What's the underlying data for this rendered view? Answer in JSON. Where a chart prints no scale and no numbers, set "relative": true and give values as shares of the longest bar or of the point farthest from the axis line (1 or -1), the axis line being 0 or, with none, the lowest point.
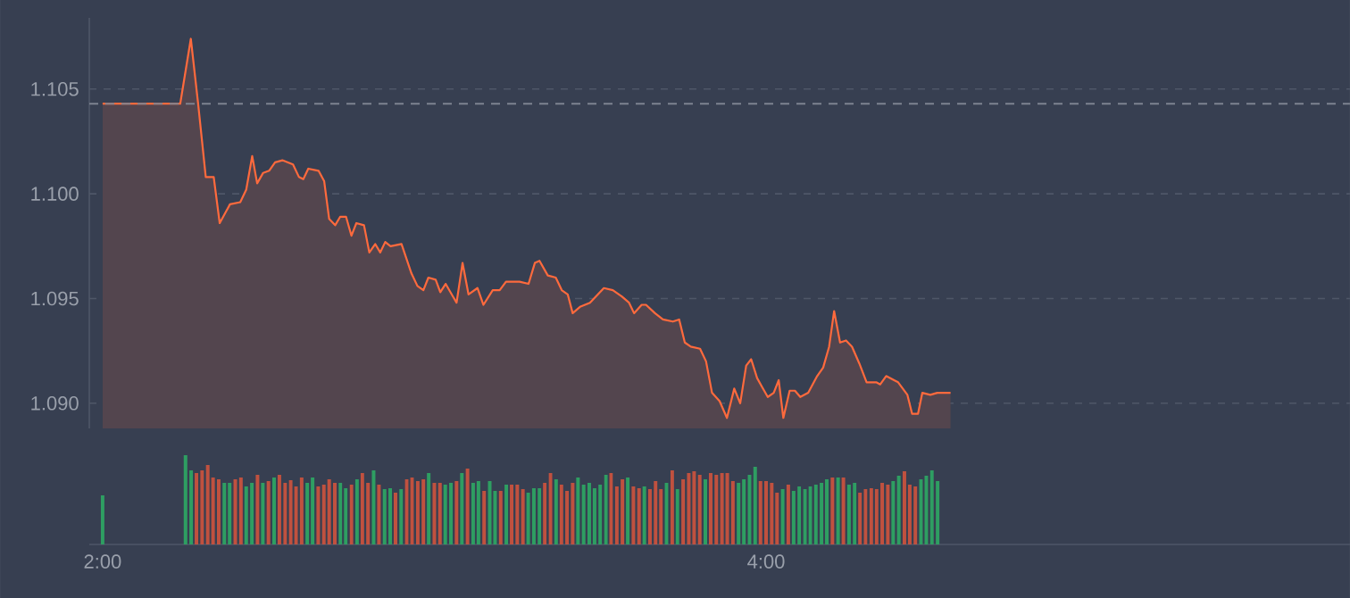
{
  "chart_data": [
    {
      "type": "area",
      "xlim": [
        1.96,
        5.76
      ],
      "ylim": [
        1.0888,
        1.1084
      ],
      "yticks": [
        {
          "value": 1.09,
          "label": "1.090"
        },
        {
          "value": 1.095,
          "label": "1.095"
        },
        {
          "value": 1.1,
          "label": "1.100"
        },
        {
          "value": 1.105,
          "label": "1.105"
        }
      ],
      "grid": "y",
      "tick_labels": "y",
      "ref_lines": [
        {
          "axis": "y",
          "value": 1.1043,
          "color": "#7d8390",
          "line_style": "dashed"
        }
      ],
      "x": [
        2.0,
        2.234,
        2.266,
        2.288,
        2.311,
        2.335,
        2.353,
        2.384,
        2.415,
        2.433,
        2.451,
        2.466,
        2.484,
        2.502,
        2.52,
        2.542,
        2.574,
        2.592,
        2.605,
        2.62,
        2.651,
        2.668,
        2.683,
        2.701,
        2.716,
        2.734,
        2.75,
        2.765,
        2.788,
        2.804,
        2.822,
        2.837,
        2.852,
        2.868,
        2.901,
        2.931,
        2.949,
        2.967,
        2.982,
        3.004,
        3.018,
        3.034,
        3.067,
        3.085,
        3.103,
        3.13,
        3.148,
        3.176,
        3.197,
        3.216,
        3.257,
        3.284,
        3.303,
        3.317,
        3.342,
        3.366,
        3.384,
        3.402,
        3.417,
        3.439,
        3.469,
        3.511,
        3.538,
        3.565,
        3.587,
        3.602,
        3.625,
        3.638,
        3.665,
        3.689,
        3.719,
        3.738,
        3.755,
        3.773,
        3.801,
        3.819,
        3.837,
        3.86,
        3.882,
        3.904,
        3.922,
        3.94,
        3.955,
        3.973,
        3.987,
        4.005,
        4.023,
        4.038,
        4.052,
        4.071,
        4.087,
        4.103,
        4.127,
        4.154,
        4.172,
        4.19,
        4.205,
        4.223,
        4.241,
        4.259,
        4.281,
        4.303,
        4.332,
        4.344,
        4.362,
        4.386,
        4.398,
        4.426,
        4.44,
        4.458,
        4.471,
        4.495,
        4.516,
        4.556
      ],
      "series": [
        {
          "color": "#ff6a3d",
          "values": [
            1.1043,
            1.1043,
            1.1074,
            1.1043,
            1.1008,
            1.1008,
            1.0986,
            1.0995,
            1.0996,
            1.1002,
            1.1018,
            1.1005,
            1.101,
            1.1011,
            1.1015,
            1.1016,
            1.1014,
            1.1008,
            1.1007,
            1.1012,
            1.1011,
            1.1006,
            1.0988,
            1.0985,
            1.0989,
            1.0989,
            1.098,
            1.0986,
            1.0985,
            1.0972,
            1.0976,
            1.0972,
            1.0977,
            1.0975,
            1.0976,
            1.0962,
            1.0956,
            1.0954,
            1.096,
            1.0959,
            1.0953,
            1.0957,
            1.0948,
            1.0967,
            1.0952,
            1.0955,
            1.0947,
            1.0954,
            1.0954,
            1.0958,
            1.0958,
            1.0957,
            1.0967,
            1.0968,
            1.0961,
            1.096,
            1.0954,
            1.0952,
            1.0943,
            1.0946,
            1.0948,
            1.0955,
            1.0954,
            1.0951,
            1.0948,
            1.0943,
            1.0947,
            1.0947,
            1.0943,
            1.094,
            1.0939,
            1.094,
            1.0929,
            1.0927,
            1.0926,
            1.092,
            1.0905,
            1.0901,
            1.0893,
            1.0907,
            1.09,
            1.0918,
            1.0921,
            1.0912,
            1.0908,
            1.0903,
            1.0905,
            1.0911,
            1.0893,
            1.0906,
            1.0906,
            1.0903,
            1.0905,
            1.0913,
            1.0917,
            1.0927,
            1.0944,
            1.0929,
            1.093,
            1.0927,
            1.0919,
            1.091,
            1.091,
            1.0909,
            1.0913,
            1.0911,
            1.091,
            1.0904,
            1.0895,
            1.0895,
            1.0905,
            1.0904,
            1.0905,
            1.0905
          ]
        }
      ]
    },
    {
      "type": "bar",
      "relative": true,
      "xlim": [
        1.96,
        5.76
      ],
      "tick_labels": "x",
      "xticks": [
        {
          "value": 2,
          "label": "2:00"
        },
        {
          "value": 4,
          "label": "4:00"
        }
      ],
      "x": [
        2.0,
        2.25,
        2.267,
        2.283,
        2.3,
        2.317,
        2.333,
        2.35,
        2.367,
        2.383,
        2.4,
        2.417,
        2.433,
        2.45,
        2.467,
        2.483,
        2.5,
        2.517,
        2.533,
        2.55,
        2.567,
        2.583,
        2.6,
        2.617,
        2.633,
        2.65,
        2.667,
        2.683,
        2.7,
        2.717,
        2.733,
        2.75,
        2.767,
        2.783,
        2.8,
        2.817,
        2.833,
        2.85,
        2.867,
        2.883,
        2.9,
        2.917,
        2.933,
        2.95,
        2.967,
        2.983,
        3.0,
        3.017,
        3.033,
        3.05,
        3.067,
        3.083,
        3.1,
        3.117,
        3.133,
        3.15,
        3.167,
        3.183,
        3.2,
        3.217,
        3.233,
        3.25,
        3.267,
        3.283,
        3.3,
        3.317,
        3.333,
        3.35,
        3.367,
        3.383,
        3.4,
        3.417,
        3.433,
        3.45,
        3.467,
        3.483,
        3.5,
        3.517,
        3.533,
        3.55,
        3.567,
        3.583,
        3.6,
        3.617,
        3.633,
        3.65,
        3.667,
        3.683,
        3.7,
        3.717,
        3.733,
        3.75,
        3.767,
        3.783,
        3.8,
        3.817,
        3.833,
        3.85,
        3.867,
        3.883,
        3.9,
        3.917,
        3.933,
        3.95,
        3.967,
        3.983,
        4.0,
        4.017,
        4.033,
        4.05,
        4.067,
        4.083,
        4.1,
        4.117,
        4.133,
        4.15,
        4.167,
        4.183,
        4.2,
        4.217,
        4.233,
        4.25,
        4.267,
        4.283,
        4.3,
        4.317,
        4.333,
        4.35,
        4.367,
        4.383,
        4.4,
        4.417,
        4.433,
        4.45,
        4.467,
        4.483,
        4.5,
        4.517
      ],
      "values": [
        0.55,
        1.0,
        0.83,
        0.8,
        0.83,
        0.89,
        0.75,
        0.73,
        0.69,
        0.69,
        0.73,
        0.75,
        0.65,
        0.69,
        0.78,
        0.69,
        0.71,
        0.75,
        0.78,
        0.69,
        0.72,
        0.65,
        0.75,
        0.69,
        0.75,
        0.65,
        0.67,
        0.73,
        0.69,
        0.69,
        0.63,
        0.67,
        0.73,
        0.8,
        0.69,
        0.83,
        0.67,
        0.62,
        0.63,
        0.58,
        0.62,
        0.73,
        0.75,
        0.71,
        0.73,
        0.8,
        0.69,
        0.69,
        0.67,
        0.69,
        0.71,
        0.8,
        0.85,
        0.69,
        0.71,
        0.6,
        0.71,
        0.6,
        0.6,
        0.67,
        0.67,
        0.67,
        0.62,
        0.58,
        0.63,
        0.63,
        0.69,
        0.8,
        0.73,
        0.67,
        0.6,
        0.69,
        0.75,
        0.67,
        0.69,
        0.63,
        0.67,
        0.78,
        0.8,
        0.65,
        0.73,
        0.75,
        0.65,
        0.63,
        0.65,
        0.62,
        0.71,
        0.62,
        0.69,
        0.83,
        0.62,
        0.73,
        0.8,
        0.82,
        0.78,
        0.73,
        0.8,
        0.78,
        0.8,
        0.8,
        0.71,
        0.69,
        0.73,
        0.78,
        0.87,
        0.71,
        0.71,
        0.69,
        0.58,
        0.62,
        0.67,
        0.6,
        0.65,
        0.62,
        0.65,
        0.67,
        0.69,
        0.73,
        0.75,
        0.75,
        0.75,
        0.67,
        0.69,
        0.58,
        0.62,
        0.63,
        0.62,
        0.69,
        0.67,
        0.71,
        0.77,
        0.82,
        0.67,
        0.65,
        0.73,
        0.77,
        0.83,
        0.71
      ],
      "colors": [
        "#2e9e62",
        "#2e9e62",
        "#2e9e62",
        "#c0513f",
        "#c0513f",
        "#c0513f",
        "#c0513f",
        "#c0513f",
        "#2e9e62",
        "#2e9e62",
        "#c0513f",
        "#c0513f",
        "#2e9e62",
        "#2e9e62",
        "#c0513f",
        "#2e9e62",
        "#c0513f",
        "#2e9e62",
        "#c0513f",
        "#c0513f",
        "#c0513f",
        "#c0513f",
        "#c0513f",
        "#2e9e62",
        "#2e9e62",
        "#c0513f",
        "#c0513f",
        "#c0513f",
        "#c0513f",
        "#2e9e62",
        "#2e9e62",
        "#c0513f",
        "#2e9e62",
        "#c0513f",
        "#c0513f",
        "#2e9e62",
        "#c0513f",
        "#2e9e62",
        "#2e9e62",
        "#c0513f",
        "#2e9e62",
        "#c0513f",
        "#c0513f",
        "#c0513f",
        "#c0513f",
        "#2e9e62",
        "#c0513f",
        "#c0513f",
        "#2e9e62",
        "#2e9e62",
        "#c0513f",
        "#2e9e62",
        "#c0513f",
        "#2e9e62",
        "#2e9e62",
        "#c0513f",
        "#2e9e62",
        "#2e9e62",
        "#c0513f",
        "#2e9e62",
        "#c0513f",
        "#c0513f",
        "#c0513f",
        "#2e9e62",
        "#2e9e62",
        "#2e9e62",
        "#c0513f",
        "#c0513f",
        "#2e9e62",
        "#c0513f",
        "#c0513f",
        "#c0513f",
        "#2e9e62",
        "#2e9e62",
        "#2e9e62",
        "#2e9e62",
        "#2e9e62",
        "#2e9e62",
        "#c0513f",
        "#c0513f",
        "#c0513f",
        "#2e9e62",
        "#c0513f",
        "#c0513f",
        "#2e9e62",
        "#c0513f",
        "#c0513f",
        "#c0513f",
        "#2e9e62",
        "#c0513f",
        "#2e9e62",
        "#c0513f",
        "#c0513f",
        "#c0513f",
        "#c0513f",
        "#2e9e62",
        "#c0513f",
        "#c0513f",
        "#c0513f",
        "#c0513f",
        "#c0513f",
        "#2e9e62",
        "#2e9e62",
        "#2e9e62",
        "#2e9e62",
        "#c0513f",
        "#c0513f",
        "#c0513f",
        "#c0513f",
        "#2e9e62",
        "#c0513f",
        "#2e9e62",
        "#2e9e62",
        "#2e9e62",
        "#2e9e62",
        "#2e9e62",
        "#2e9e62",
        "#2e9e62",
        "#c0513f",
        "#2e9e62",
        "#c0513f",
        "#2e9e62",
        "#2e9e62",
        "#c0513f",
        "#c0513f",
        "#c0513f",
        "#c0513f",
        "#c0513f",
        "#c0513f",
        "#2e9e62",
        "#2e9e62",
        "#c0513f",
        "#c0513f",
        "#c0513f",
        "#2e9e62",
        "#2e9e62",
        "#2e9e62",
        "#2e9e62"
      ]
    }
  ]
}
